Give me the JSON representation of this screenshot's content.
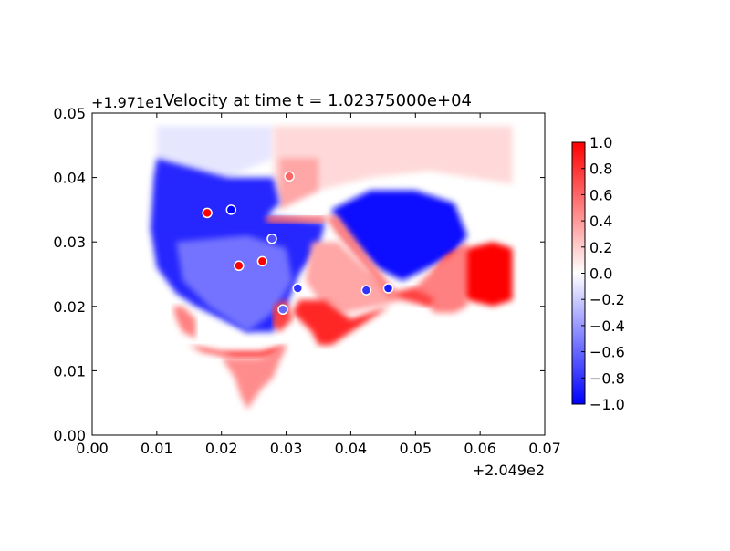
{
  "chart_data": {
    "type": "heatmap",
    "title": "Velocity at time t = 1.02375000e+04",
    "xlabel": "",
    "ylabel": "",
    "x_offset_label": "+2.049e2",
    "y_offset_label": "+1.971e1",
    "xlim": [
      0.0,
      0.07
    ],
    "ylim": [
      0.0,
      0.05
    ],
    "x_ticks": [
      0.0,
      0.01,
      0.02,
      0.03,
      0.04,
      0.05,
      0.06,
      0.07
    ],
    "x_tick_labels": [
      "0.00",
      "0.01",
      "0.02",
      "0.03",
      "0.04",
      "0.05",
      "0.06",
      "0.07"
    ],
    "y_ticks": [
      0.0,
      0.01,
      0.02,
      0.03,
      0.04,
      0.05
    ],
    "y_tick_labels": [
      "0.00",
      "0.01",
      "0.02",
      "0.03",
      "0.04",
      "0.05"
    ],
    "grid": false,
    "colormap": "bwr",
    "colormap_colors": [
      "#0000ff",
      "#ffffff",
      "#ff0000"
    ],
    "clim": [
      -1.0,
      1.0
    ],
    "colorbar": {
      "ticks": [
        1.0,
        0.8,
        0.6,
        0.4,
        0.2,
        0.0,
        -0.2,
        -0.4,
        -0.6,
        -0.8,
        -1.0
      ],
      "tick_labels": [
        "1.0",
        "0.8",
        "0.6",
        "0.4",
        "0.2",
        "0.0",
        "−0.2",
        "−0.4",
        "−0.6",
        "−0.8",
        "−1.0"
      ],
      "placement": "right"
    },
    "field_regions": [
      {
        "value": -0.1,
        "polygon": [
          [
            0.01,
            0.048
          ],
          [
            0.028,
            0.048
          ],
          [
            0.028,
            0.043
          ],
          [
            0.021,
            0.04
          ],
          [
            0.01,
            0.043
          ]
        ]
      },
      {
        "value": 0.15,
        "polygon": [
          [
            0.028,
            0.048
          ],
          [
            0.065,
            0.048
          ],
          [
            0.065,
            0.039
          ],
          [
            0.052,
            0.041
          ],
          [
            0.043,
            0.04
          ],
          [
            0.035,
            0.038
          ],
          [
            0.028,
            0.037
          ]
        ]
      },
      {
        "value": 0.35,
        "polygon": [
          [
            0.029,
            0.043
          ],
          [
            0.035,
            0.043
          ],
          [
            0.035,
            0.038
          ],
          [
            0.029,
            0.035
          ]
        ]
      },
      {
        "value": -0.85,
        "polygon": [
          [
            0.01,
            0.043
          ],
          [
            0.021,
            0.04
          ],
          [
            0.028,
            0.04
          ],
          [
            0.029,
            0.036
          ],
          [
            0.027,
            0.034
          ],
          [
            0.036,
            0.033
          ],
          [
            0.035,
            0.029
          ],
          [
            0.032,
            0.025
          ],
          [
            0.03,
            0.02
          ],
          [
            0.028,
            0.016
          ],
          [
            0.024,
            0.016
          ],
          [
            0.016,
            0.02
          ],
          [
            0.013,
            0.022
          ],
          [
            0.01,
            0.026
          ],
          [
            0.009,
            0.032
          ],
          [
            0.0095,
            0.04
          ]
        ]
      },
      {
        "value": -0.55,
        "polygon": [
          [
            0.013,
            0.03
          ],
          [
            0.024,
            0.031
          ],
          [
            0.03,
            0.029
          ],
          [
            0.031,
            0.024
          ],
          [
            0.028,
            0.019
          ],
          [
            0.024,
            0.016
          ],
          [
            0.018,
            0.02
          ],
          [
            0.014,
            0.024
          ]
        ]
      },
      {
        "value": -0.95,
        "polygon": [
          [
            0.037,
            0.035
          ],
          [
            0.043,
            0.038
          ],
          [
            0.05,
            0.038
          ],
          [
            0.056,
            0.036
          ],
          [
            0.058,
            0.031
          ],
          [
            0.056,
            0.028
          ],
          [
            0.052,
            0.026
          ],
          [
            0.048,
            0.024
          ],
          [
            0.044,
            0.026
          ],
          [
            0.04,
            0.03
          ],
          [
            0.038,
            0.033
          ]
        ]
      },
      {
        "value": 0.35,
        "polygon": [
          [
            0.034,
            0.03
          ],
          [
            0.038,
            0.03
          ],
          [
            0.042,
            0.026
          ],
          [
            0.046,
            0.023
          ],
          [
            0.048,
            0.021
          ],
          [
            0.044,
            0.02
          ],
          [
            0.039,
            0.019
          ],
          [
            0.035,
            0.021
          ],
          [
            0.033,
            0.024
          ]
        ]
      },
      {
        "value": 0.85,
        "polygon": [
          [
            0.032,
            0.021
          ],
          [
            0.036,
            0.021
          ],
          [
            0.04,
            0.018
          ],
          [
            0.046,
            0.02
          ],
          [
            0.04,
            0.016
          ],
          [
            0.037,
            0.014
          ],
          [
            0.035,
            0.014
          ],
          [
            0.034,
            0.016
          ],
          [
            0.031,
            0.019
          ]
        ]
      },
      {
        "value": 1.0,
        "polygon": [
          [
            0.058,
            0.029
          ],
          [
            0.062,
            0.03
          ],
          [
            0.065,
            0.029
          ],
          [
            0.065,
            0.021
          ],
          [
            0.062,
            0.02
          ],
          [
            0.058,
            0.021
          ],
          [
            0.055,
            0.023
          ],
          [
            0.053,
            0.025
          ],
          [
            0.055,
            0.028
          ]
        ]
      },
      {
        "value": 0.5,
        "polygon": [
          [
            0.054,
            0.027
          ],
          [
            0.058,
            0.03
          ],
          [
            0.058,
            0.02
          ],
          [
            0.056,
            0.019
          ],
          [
            0.053,
            0.019
          ],
          [
            0.051,
            0.021
          ],
          [
            0.05,
            0.023
          ]
        ]
      },
      {
        "value": 0.75,
        "polygon": [
          [
            0.046,
            0.022
          ],
          [
            0.05,
            0.023
          ],
          [
            0.053,
            0.021
          ],
          [
            0.052,
            0.02
          ],
          [
            0.048,
            0.021
          ]
        ]
      },
      {
        "value": 0.5,
        "polygon": [
          [
            0.0125,
            0.02
          ],
          [
            0.014,
            0.02
          ],
          [
            0.016,
            0.018
          ],
          [
            0.016,
            0.015
          ],
          [
            0.014,
            0.016
          ],
          [
            0.013,
            0.018
          ]
        ]
      },
      {
        "value": 0.85,
        "polygon": [
          [
            0.015,
            0.014
          ],
          [
            0.02,
            0.013
          ],
          [
            0.026,
            0.013
          ],
          [
            0.03,
            0.014
          ],
          [
            0.028,
            0.012
          ],
          [
            0.022,
            0.012
          ],
          [
            0.017,
            0.013
          ]
        ]
      },
      {
        "value": 0.45,
        "polygon": [
          [
            0.02,
            0.012
          ],
          [
            0.026,
            0.012
          ],
          [
            0.03,
            0.014
          ],
          [
            0.028,
            0.009
          ],
          [
            0.026,
            0.007
          ],
          [
            0.024,
            0.004
          ],
          [
            0.023,
            0.006
          ],
          [
            0.022,
            0.009
          ]
        ]
      },
      {
        "value": 0.75,
        "polygon": [
          [
            0.028,
            0.02
          ],
          [
            0.03,
            0.021
          ],
          [
            0.031,
            0.018
          ],
          [
            0.029,
            0.016
          ],
          [
            0.028,
            0.017
          ]
        ]
      },
      {
        "value": 0.5,
        "polygon": [
          [
            0.036,
            0.034
          ],
          [
            0.038,
            0.034
          ],
          [
            0.044,
            0.026
          ],
          [
            0.047,
            0.022
          ],
          [
            0.046,
            0.021
          ],
          [
            0.043,
            0.025
          ],
          [
            0.038,
            0.031
          ]
        ]
      },
      {
        "value": 0.6,
        "polygon": [
          [
            0.027,
            0.034
          ],
          [
            0.036,
            0.034
          ],
          [
            0.036,
            0.033
          ],
          [
            0.027,
            0.033
          ]
        ]
      }
    ],
    "point_features": [
      {
        "x": 0.0178,
        "y": 0.0345,
        "value": 1.0
      },
      {
        "x": 0.0227,
        "y": 0.0263,
        "value": 1.0
      },
      {
        "x": 0.0263,
        "y": 0.027,
        "value": 1.0
      },
      {
        "x": 0.0215,
        "y": 0.035,
        "value": -1.0
      },
      {
        "x": 0.0305,
        "y": 0.0402,
        "value": 0.6
      },
      {
        "x": 0.0278,
        "y": 0.0305,
        "value": -0.7
      },
      {
        "x": 0.0318,
        "y": 0.0228,
        "value": -0.8
      },
      {
        "x": 0.0424,
        "y": 0.0225,
        "value": -0.8
      },
      {
        "x": 0.0458,
        "y": 0.0228,
        "value": -0.9
      },
      {
        "x": 0.0295,
        "y": 0.0195,
        "value": -0.6
      }
    ]
  }
}
